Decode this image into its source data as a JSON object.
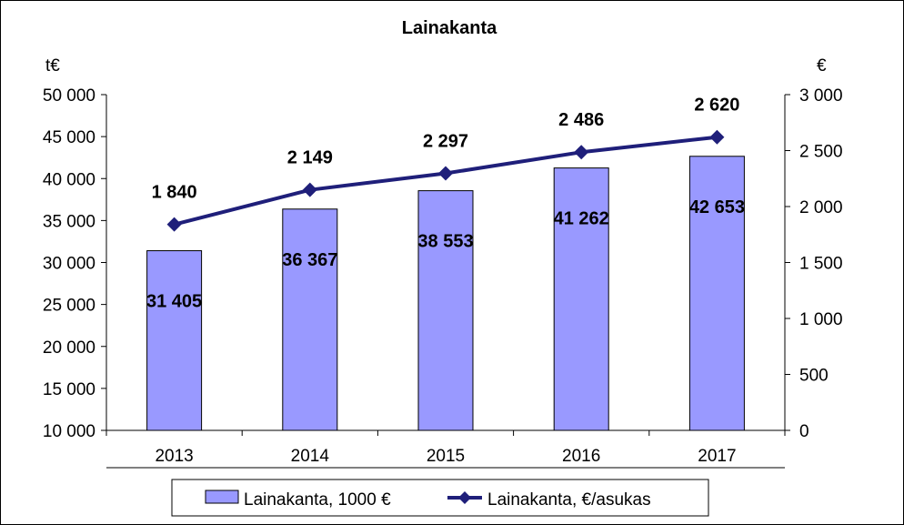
{
  "chart_data": {
    "type": "bar",
    "title": "Lainakanta",
    "categories": [
      "2013",
      "2014",
      "2015",
      "2016",
      "2017"
    ],
    "y_left": {
      "unit_label": "t€",
      "ylim": [
        10000,
        50000
      ],
      "ticks": [
        10000,
        15000,
        20000,
        25000,
        30000,
        35000,
        40000,
        45000,
        50000
      ],
      "tick_labels": [
        "10 000",
        "15 000",
        "20 000",
        "25 000",
        "30 000",
        "35 000",
        "40 000",
        "45 000",
        "50 000"
      ]
    },
    "y_right": {
      "unit_label": "€",
      "ylim": [
        0,
        3000
      ],
      "ticks": [
        0,
        500,
        1000,
        1500,
        2000,
        2500,
        3000
      ],
      "tick_labels": [
        "0",
        "500",
        "1 000",
        "1 500",
        "2 000",
        "2 500",
        "3 000"
      ]
    },
    "series": [
      {
        "name": "Lainakanta, 1000 €",
        "type": "bar",
        "axis": "left",
        "color": "#9999ff",
        "values": [
          31405,
          36367,
          38553,
          41262,
          42653
        ],
        "labels": [
          "31 405",
          "36 367",
          "38 553",
          "41 262",
          "42 653"
        ]
      },
      {
        "name": "Lainakanta, €/asukas",
        "type": "line",
        "axis": "right",
        "color": "#1f1f7a",
        "marker": "diamond",
        "values": [
          1840,
          2149,
          2297,
          2486,
          2620
        ],
        "labels": [
          "1 840",
          "2 149",
          "2 297",
          "2 486",
          "2 620"
        ]
      }
    ],
    "grid": false,
    "legend_position": "bottom"
  }
}
